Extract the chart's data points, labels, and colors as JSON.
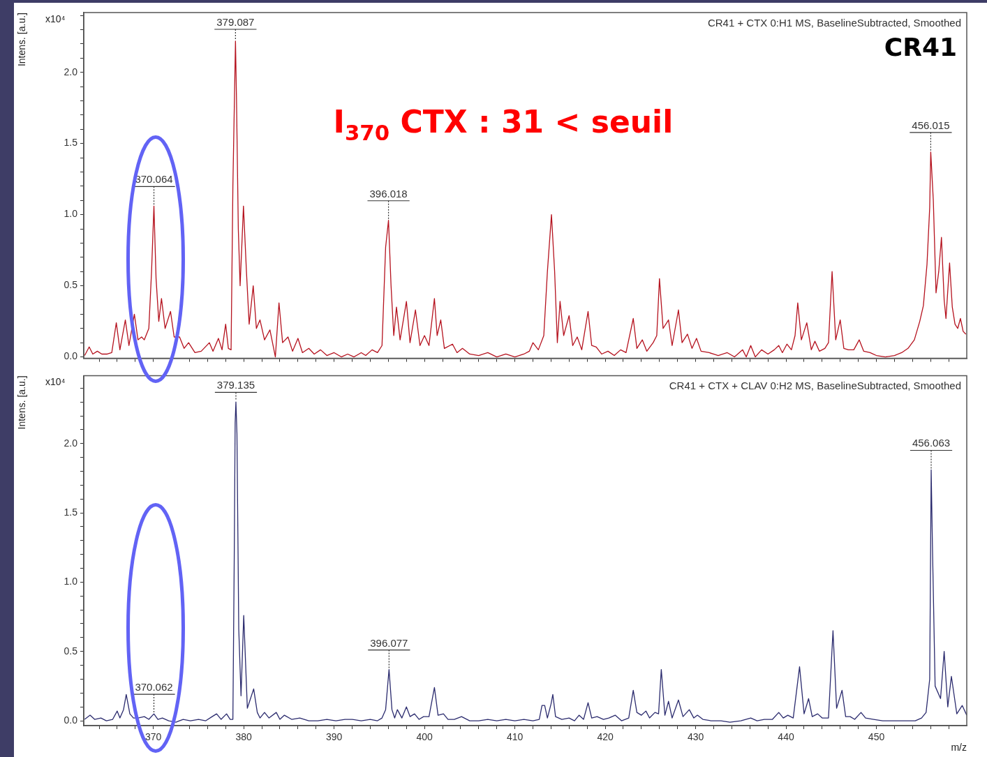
{
  "chart_data": [
    {
      "type": "line",
      "title": "CR41 + CTX 0:H1 MS, BaselineSubtracted, Smoothed",
      "ylabel": "Intens. [a.u.]",
      "tick_labels": "y",
      "grid": false,
      "legend": false,
      "marker": "none",
      "line_style": "solid",
      "annotations": [
        "x10⁴",
        "CR41",
        "I$_{370}$ CTX : 31 < seuil",
        {
          "text": "370.064",
          "x": 370.064,
          "y": 1.06
        },
        {
          "text": "379.087",
          "x": 379.087,
          "y": 2.22
        },
        {
          "text": "396.018",
          "x": 396.018,
          "y": 0.96
        },
        {
          "text": "456.015",
          "x": 456.015,
          "y": 1.44
        }
      ],
      "xlim": [
        362.3,
        460
      ],
      "xticks": [
        {
          "value": 364,
          "label": null
        },
        {
          "value": 366,
          "label": null
        },
        {
          "value": 368,
          "label": null
        },
        {
          "value": 370,
          "label": null
        },
        {
          "value": 372,
          "label": null
        },
        {
          "value": 374,
          "label": null
        },
        {
          "value": 376,
          "label": null
        },
        {
          "value": 378,
          "label": null
        },
        {
          "value": 380,
          "label": null
        },
        {
          "value": 382,
          "label": null
        },
        {
          "value": 384,
          "label": null
        },
        {
          "value": 386,
          "label": null
        },
        {
          "value": 388,
          "label": null
        },
        {
          "value": 390,
          "label": null
        },
        {
          "value": 392,
          "label": null
        },
        {
          "value": 394,
          "label": null
        },
        {
          "value": 396,
          "label": null
        },
        {
          "value": 398,
          "label": null
        },
        {
          "value": 400,
          "label": null
        },
        {
          "value": 402,
          "label": null
        },
        {
          "value": 404,
          "label": null
        },
        {
          "value": 406,
          "label": null
        },
        {
          "value": 408,
          "label": null
        },
        {
          "value": 410,
          "label": null
        },
        {
          "value": 412,
          "label": null
        },
        {
          "value": 414,
          "label": null
        },
        {
          "value": 416,
          "label": null
        },
        {
          "value": 418,
          "label": null
        },
        {
          "value": 420,
          "label": null
        },
        {
          "value": 422,
          "label": null
        },
        {
          "value": 424,
          "label": null
        },
        {
          "value": 426,
          "label": null
        },
        {
          "value": 428,
          "label": null
        },
        {
          "value": 430,
          "label": null
        },
        {
          "value": 432,
          "label": null
        },
        {
          "value": 434,
          "label": null
        },
        {
          "value": 436,
          "label": null
        },
        {
          "value": 438,
          "label": null
        },
        {
          "value": 440,
          "label": null
        },
        {
          "value": 442,
          "label": null
        },
        {
          "value": 444,
          "label": null
        },
        {
          "value": 446,
          "label": null
        },
        {
          "value": 448,
          "label": null
        },
        {
          "value": 450,
          "label": null
        },
        {
          "value": 452,
          "label": null
        },
        {
          "value": 454,
          "label": null
        },
        {
          "value": 456,
          "label": null
        },
        {
          "value": 458,
          "label": null
        }
      ],
      "ylim": [
        -0.01,
        2.42
      ],
      "yticks": [
        {
          "value": 0,
          "label": "0.0"
        },
        {
          "value": 0.1,
          "label": null
        },
        {
          "value": 0.2,
          "label": null
        },
        {
          "value": 0.3,
          "label": null
        },
        {
          "value": 0.4,
          "label": null
        },
        {
          "value": 0.5,
          "label": "0.5"
        },
        {
          "value": 0.6,
          "label": null
        },
        {
          "value": 0.7,
          "label": null
        },
        {
          "value": 0.8,
          "label": null
        },
        {
          "value": 0.9,
          "label": null
        },
        {
          "value": 1,
          "label": "1.0"
        },
        {
          "value": 1.1,
          "label": null
        },
        {
          "value": 1.2,
          "label": null
        },
        {
          "value": 1.3,
          "label": null
        },
        {
          "value": 1.4,
          "label": null
        },
        {
          "value": 1.5,
          "label": "1.5"
        },
        {
          "value": 1.6,
          "label": null
        },
        {
          "value": 1.7,
          "label": null
        },
        {
          "value": 1.8,
          "label": null
        },
        {
          "value": 1.9,
          "label": null
        },
        {
          "value": 2,
          "label": "2.0"
        },
        {
          "value": 2.1,
          "label": null
        },
        {
          "value": 2.2,
          "label": null
        },
        {
          "value": 2.3,
          "label": null
        },
        {
          "value": 2.4,
          "label": null
        }
      ],
      "series": [
        {
          "color": "#b5121e",
          "x": [
            362.4,
            362.9,
            363.3,
            363.8,
            364.3,
            364.9,
            365.4,
            365.9,
            366.3,
            366.9,
            367.3,
            367.9,
            368.3,
            368.7,
            369.0,
            369.5,
            369.8,
            370.064,
            370.3,
            370.6,
            370.9,
            371.3,
            371.9,
            372.3,
            372.9,
            373.4,
            373.9,
            374.6,
            375.3,
            376.2,
            376.6,
            377.2,
            377.6,
            378.0,
            378.3,
            378.6,
            378.8,
            379.087,
            379.2,
            379.4,
            379.6,
            379.8,
            379.97,
            380.3,
            380.6,
            381.05,
            381.4,
            381.8,
            382.3,
            382.9,
            383.5,
            383.9,
            384.3,
            384.9,
            385.4,
            386.0,
            386.5,
            387.2,
            387.8,
            388.5,
            389.2,
            390.0,
            390.8,
            391.5,
            392.2,
            393.0,
            393.5,
            394.2,
            394.8,
            395.3,
            395.7,
            396.018,
            396.3,
            396.6,
            396.9,
            397.3,
            398.0,
            398.4,
            399.0,
            399.5,
            400.0,
            400.5,
            401.1,
            401.4,
            401.8,
            402.2,
            403.1,
            403.6,
            404.2,
            405,
            406,
            407,
            408,
            409,
            410,
            411,
            411.6,
            412.0,
            412.6,
            413.2,
            413.6,
            414.05,
            414.4,
            414.7,
            415.0,
            415.4,
            416.0,
            416.4,
            416.9,
            417.4,
            418.1,
            418.5,
            419.0,
            419.6,
            420.3,
            421.0,
            421.7,
            422.3,
            423.1,
            423.5,
            424.1,
            424.6,
            425.3,
            425.7,
            426.0,
            426.4,
            427.0,
            427.4,
            428.1,
            428.5,
            429.1,
            429.6,
            430.1,
            430.6,
            431.5,
            432.5,
            433.5,
            434.3,
            435.2,
            435.6,
            436.1,
            436.6,
            437.3,
            438.0,
            438.7,
            439.2,
            439.6,
            440.1,
            440.6,
            441.0,
            441.3,
            441.7,
            442.3,
            442.8,
            443.2,
            443.7,
            444.3,
            444.7,
            445.1,
            445.5,
            446.0,
            446.4,
            446.9,
            447.5,
            448.1,
            448.6,
            449.3,
            450.0,
            451.0,
            452.0,
            452.8,
            453.5,
            454.2,
            454.8,
            455.2,
            455.6,
            455.9,
            456.015,
            456.3,
            456.6,
            456.9,
            457.2,
            457.5,
            457.7,
            458.1,
            458.4,
            458.7,
            459.0,
            459.3,
            459.6,
            459.9
          ],
          "values": [
            0.01,
            0.07,
            0.02,
            0.04,
            0.02,
            0.02,
            0.03,
            0.24,
            0.05,
            0.26,
            0.08,
            0.3,
            0.12,
            0.14,
            0.12,
            0.2,
            0.6,
            1.06,
            0.55,
            0.25,
            0.41,
            0.2,
            0.32,
            0.14,
            0.14,
            0.06,
            0.1,
            0.03,
            0.04,
            0.1,
            0.04,
            0.13,
            0.05,
            0.23,
            0.06,
            0.05,
            1.2,
            2.22,
            1.81,
            0.9,
            0.5,
            0.8,
            1.06,
            0.6,
            0.23,
            0.5,
            0.2,
            0.26,
            0.12,
            0.19,
            0.0,
            0.38,
            0.1,
            0.14,
            0.04,
            0.13,
            0.03,
            0.06,
            0.02,
            0.05,
            0.01,
            0.03,
            0.0,
            0.02,
            0.0,
            0.03,
            0.01,
            0.05,
            0.03,
            0.08,
            0.77,
            0.96,
            0.5,
            0.15,
            0.35,
            0.12,
            0.39,
            0.1,
            0.33,
            0.08,
            0.15,
            0.08,
            0.41,
            0.15,
            0.26,
            0.06,
            0.09,
            0.03,
            0.06,
            0.02,
            0.01,
            0.03,
            0.0,
            0.02,
            0.0,
            0.02,
            0.04,
            0.1,
            0.05,
            0.15,
            0.6,
            1.0,
            0.6,
            0.1,
            0.39,
            0.15,
            0.29,
            0.08,
            0.14,
            0.05,
            0.32,
            0.08,
            0.07,
            0.02,
            0.04,
            0.01,
            0.05,
            0.03,
            0.27,
            0.06,
            0.12,
            0.04,
            0.1,
            0.15,
            0.55,
            0.2,
            0.26,
            0.08,
            0.33,
            0.1,
            0.16,
            0.06,
            0.13,
            0.04,
            0.03,
            0.01,
            0.03,
            0.0,
            0.05,
            0.0,
            0.08,
            0.0,
            0.05,
            0.02,
            0.05,
            0.08,
            0.03,
            0.09,
            0.05,
            0.15,
            0.38,
            0.12,
            0.24,
            0.05,
            0.11,
            0.04,
            0.06,
            0.1,
            0.6,
            0.12,
            0.26,
            0.06,
            0.05,
            0.05,
            0.12,
            0.04,
            0.03,
            0.01,
            0.0,
            0.01,
            0.03,
            0.06,
            0.12,
            0.25,
            0.36,
            0.65,
            1.05,
            1.44,
            1.1,
            0.45,
            0.6,
            0.84,
            0.4,
            0.27,
            0.66,
            0.35,
            0.23,
            0.2,
            0.27,
            0.18,
            0.16
          ]
        }
      ]
    },
    {
      "type": "line",
      "title": "CR41 + CTX + CLAV 0:H2 MS, BaselineSubtracted, Smoothed",
      "ylabel": "Intens. [a.u.]",
      "xlabel": "m/z",
      "grid": false,
      "legend": false,
      "marker": "none",
      "line_style": "solid",
      "annotations": [
        "x10⁴",
        {
          "text": "370.062",
          "x": 370.062,
          "y": 0.05
        },
        {
          "text": "379.135",
          "x": 379.135,
          "y": 2.3
        },
        {
          "text": "396.077",
          "x": 396.077,
          "y": 0.37
        },
        {
          "text": "456.063",
          "x": 456.063,
          "y": 1.81
        }
      ],
      "xlim": [
        362.3,
        460
      ],
      "xticks": [
        {
          "value": 364,
          "label": null
        },
        {
          "value": 366,
          "label": null
        },
        {
          "value": 368,
          "label": null
        },
        370,
        {
          "value": 372,
          "label": null
        },
        {
          "value": 374,
          "label": null
        },
        {
          "value": 376,
          "label": null
        },
        {
          "value": 378,
          "label": null
        },
        380,
        {
          "value": 382,
          "label": null
        },
        {
          "value": 384,
          "label": null
        },
        {
          "value": 386,
          "label": null
        },
        {
          "value": 388,
          "label": null
        },
        390,
        {
          "value": 392,
          "label": null
        },
        {
          "value": 394,
          "label": null
        },
        {
          "value": 396,
          "label": null
        },
        {
          "value": 398,
          "label": null
        },
        400,
        {
          "value": 402,
          "label": null
        },
        {
          "value": 404,
          "label": null
        },
        {
          "value": 406,
          "label": null
        },
        {
          "value": 408,
          "label": null
        },
        410,
        {
          "value": 412,
          "label": null
        },
        {
          "value": 414,
          "label": null
        },
        {
          "value": 416,
          "label": null
        },
        {
          "value": 418,
          "label": null
        },
        420,
        {
          "value": 422,
          "label": null
        },
        {
          "value": 424,
          "label": null
        },
        {
          "value": 426,
          "label": null
        },
        {
          "value": 428,
          "label": null
        },
        430,
        {
          "value": 432,
          "label": null
        },
        {
          "value": 434,
          "label": null
        },
        {
          "value": 436,
          "label": null
        },
        {
          "value": 438,
          "label": null
        },
        440,
        {
          "value": 442,
          "label": null
        },
        {
          "value": 444,
          "label": null
        },
        {
          "value": 446,
          "label": null
        },
        {
          "value": 448,
          "label": null
        },
        450,
        {
          "value": 452,
          "label": null
        },
        {
          "value": 454,
          "label": null
        },
        {
          "value": 456,
          "label": null
        },
        {
          "value": 458,
          "label": null
        }
      ],
      "ylim": [
        -0.035,
        2.49
      ],
      "yticks": [
        {
          "value": 0,
          "label": "0.0"
        },
        {
          "value": 0.1,
          "label": null
        },
        {
          "value": 0.2,
          "label": null
        },
        {
          "value": 0.3,
          "label": null
        },
        {
          "value": 0.4,
          "label": null
        },
        {
          "value": 0.5,
          "label": "0.5"
        },
        {
          "value": 0.6,
          "label": null
        },
        {
          "value": 0.7,
          "label": null
        },
        {
          "value": 0.8,
          "label": null
        },
        {
          "value": 0.9,
          "label": null
        },
        {
          "value": 1,
          "label": "1.0"
        },
        {
          "value": 1.1,
          "label": null
        },
        {
          "value": 1.2,
          "label": null
        },
        {
          "value": 1.3,
          "label": null
        },
        {
          "value": 1.4,
          "label": null
        },
        {
          "value": 1.5,
          "label": "1.5"
        },
        {
          "value": 1.6,
          "label": null
        },
        {
          "value": 1.7,
          "label": null
        },
        {
          "value": 1.8,
          "label": null
        },
        {
          "value": 1.9,
          "label": null
        },
        {
          "value": 2,
          "label": "2.0"
        },
        {
          "value": 2.1,
          "label": null
        },
        {
          "value": 2.2,
          "label": null
        },
        {
          "value": 2.3,
          "label": null
        },
        {
          "value": 2.4,
          "label": null
        }
      ],
      "series": [
        {
          "color": "#2b2b6e",
          "x": [
            362.4,
            363.0,
            363.5,
            364.2,
            364.8,
            365.5,
            366.0,
            366.3,
            366.7,
            367.0,
            367.4,
            367.8,
            368.3,
            369.0,
            369.5,
            370.062,
            370.5,
            371.0,
            371.7,
            372.5,
            373.3,
            374.1,
            375.0,
            375.8,
            376.5,
            377.0,
            377.5,
            378.1,
            378.5,
            378.8,
            378.95,
            379.05,
            379.135,
            379.25,
            379.45,
            379.7,
            380.0,
            380.4,
            380.7,
            381.1,
            381.5,
            381.8,
            382.3,
            382.8,
            383.6,
            384.0,
            384.5,
            385.3,
            386.2,
            387.2,
            388.2,
            389.2,
            390.2,
            391.2,
            392.0,
            393.0,
            394.0,
            394.8,
            395.3,
            395.7,
            396.077,
            396.4,
            396.7,
            397.0,
            397.5,
            398.0,
            398.4,
            398.9,
            399.4,
            399.9,
            400.5,
            401.1,
            401.5,
            402.1,
            402.6,
            403.3,
            404.1,
            405.0,
            406.0,
            407.0,
            408.0,
            409.0,
            410.0,
            411.0,
            412.0,
            412.7,
            413.0,
            413.3,
            413.6,
            414.0,
            414.2,
            414.5,
            415.2,
            416.0,
            416.6,
            417.1,
            417.6,
            418.1,
            418.5,
            419.1,
            419.8,
            420.4,
            421.1,
            421.8,
            422.6,
            423.1,
            423.5,
            424.0,
            424.5,
            424.9,
            425.5,
            425.9,
            426.2,
            426.6,
            427.0,
            427.4,
            428.1,
            428.6,
            429.3,
            429.8,
            430.2,
            430.8,
            431.7,
            432.8,
            433.8,
            435.0,
            436.1,
            436.8,
            437.6,
            438.5,
            439.2,
            439.7,
            440.2,
            440.8,
            441.5,
            442.0,
            442.5,
            442.9,
            443.5,
            444.0,
            444.7,
            445.2,
            445.6,
            446.2,
            446.6,
            447.1,
            447.6,
            448.3,
            448.8,
            449.7,
            450.7,
            451.5,
            452.5,
            453.5,
            454.3,
            455.0,
            455.5,
            455.9,
            456.063,
            456.2,
            456.5,
            457.1,
            457.5,
            457.9,
            458.3,
            458.9,
            459.5,
            460.0
          ],
          "values": [
            0.01,
            0.04,
            0.01,
            0.02,
            0.0,
            0.01,
            0.07,
            0.02,
            0.08,
            0.19,
            0.05,
            0.02,
            0.02,
            0.03,
            0.01,
            0.05,
            0.01,
            0.02,
            0.0,
            -0.01,
            0.01,
            0.0,
            0.01,
            0.0,
            0.03,
            0.05,
            0.01,
            0.05,
            0.01,
            0.01,
            1.18,
            2.15,
            2.3,
            2.07,
            0.66,
            0.18,
            0.76,
            0.09,
            0.15,
            0.23,
            0.06,
            0.02,
            0.06,
            0.02,
            0.06,
            0.01,
            0.04,
            0.01,
            0.02,
            0.0,
            0.0,
            0.01,
            0.0,
            0.01,
            0.01,
            0.0,
            0.01,
            0.0,
            0.02,
            0.08,
            0.37,
            0.08,
            0.02,
            0.08,
            0.02,
            0.1,
            0.03,
            0.05,
            0.01,
            0.03,
            0.03,
            0.24,
            0.04,
            0.05,
            0.01,
            0.01,
            0.03,
            0.0,
            0.0,
            0.01,
            0.0,
            0.01,
            0.0,
            0.01,
            0.0,
            0.01,
            0.11,
            0.11,
            0.02,
            0.12,
            0.19,
            0.03,
            0.01,
            0.02,
            0.0,
            0.04,
            0.01,
            0.13,
            0.02,
            0.03,
            0.01,
            0.02,
            0.04,
            0.0,
            0.02,
            0.22,
            0.06,
            0.04,
            0.07,
            0.02,
            0.06,
            0.05,
            0.37,
            0.04,
            0.14,
            0.02,
            0.15,
            0.03,
            0.08,
            0.02,
            0.04,
            0.01,
            0.0,
            0.0,
            -0.01,
            0.0,
            0.02,
            0.0,
            0.01,
            0.01,
            0.06,
            0.02,
            0.04,
            0.02,
            0.39,
            0.05,
            0.16,
            0.03,
            0.05,
            0.02,
            0.02,
            0.65,
            0.09,
            0.22,
            0.03,
            0.03,
            0.01,
            0.06,
            0.02,
            0.01,
            0.0,
            0.0,
            0.0,
            0.0,
            0.0,
            0.02,
            0.06,
            0.3,
            1.81,
            1.27,
            0.25,
            0.16,
            0.5,
            0.1,
            0.32,
            0.05,
            0.11,
            0.04
          ]
        }
      ]
    }
  ]
}
